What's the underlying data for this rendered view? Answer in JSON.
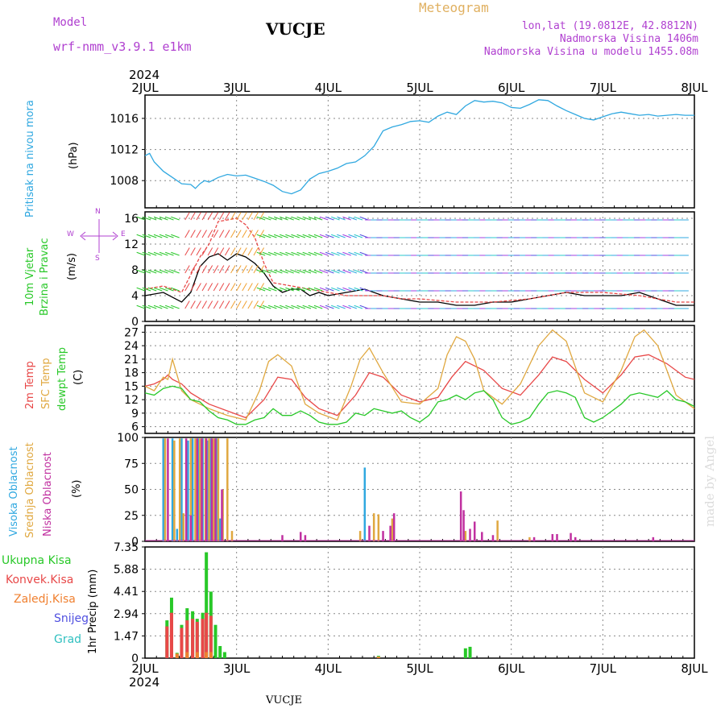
{
  "header": {
    "model_label": "Model",
    "model_name": "wrf-nmm_v3.9.1 e1km",
    "station": "VUCJE",
    "meteogram": "Meteogram",
    "lonlat": "lon,lat (19.0812E, 42.8812N)",
    "elevation": "Nadmorska Visina 1406m",
    "model_elevation": "Nadmorska Visina u modelu 1455.08m",
    "year_top": "2024",
    "year_bottom": "2024",
    "footer_station": "VUCJE",
    "credit": "made by Angel"
  },
  "colors": {
    "pressure": "#30a8e0",
    "temp2m": "#e84848",
    "sfc": "#e0a840",
    "dew": "#28c828",
    "high_cloud": "#30a8e0",
    "mid_cloud": "#e0a840",
    "low_cloud": "#c030a0",
    "total_precip": "#28c828",
    "conv_precip": "#e84848",
    "frozen_precip": "#f08030",
    "snow": "#5050e0",
    "hail": "#30c0c0",
    "wind_label": "#28c828",
    "wind_dir": "#b040d0"
  },
  "labels": {
    "pressure": {
      "name": "Pritisak na nivou mora",
      "unit": "(hPa)"
    },
    "wind": {
      "name1": "10m Vjetar",
      "name2": "Brzina i Pravac",
      "unit": "(m/s)",
      "compass_n": "N",
      "compass_s": "S",
      "compass_w": "W",
      "compass_e": "E"
    },
    "temp": {
      "t2m": "2m Temp",
      "sfc": "SFC Temp",
      "dew": "dewpt Temp",
      "unit": "(C)"
    },
    "cloud": {
      "high": "Visoka Oblacnost",
      "mid": "Srednja Oblacnost",
      "low": "Niska Oblacnost",
      "unit": "(%)"
    },
    "precip": {
      "unit": "1hr Precip (mm)",
      "legend": [
        "Ukupna Kisa",
        "Konvek.Kisa",
        "Zaledj.Kisa",
        "Snijeg",
        "Grad"
      ]
    }
  },
  "chart_data": [
    {
      "type": "line",
      "name": "pressure",
      "title": "",
      "ylabel": "Pritisak na nivou mora (hPa)",
      "x_ticks": [
        "2JUL",
        "3JUL",
        "4JUL",
        "5JUL",
        "6JUL",
        "7JUL",
        "8JUL"
      ],
      "xlim": [
        0,
        6
      ],
      "ylim": [
        1004.5,
        1019
      ],
      "y_ticks": [
        1008,
        1012,
        1016
      ],
      "grid": true,
      "series": [
        {
          "name": "pressure",
          "x": [
            0,
            0.05,
            0.1,
            0.2,
            0.3,
            0.4,
            0.5,
            0.55,
            0.6,
            0.65,
            0.7,
            0.8,
            0.9,
            1.0,
            1.1,
            1.2,
            1.3,
            1.4,
            1.5,
            1.6,
            1.7,
            1.8,
            1.9,
            2.0,
            2.1,
            2.2,
            2.3,
            2.4,
            2.5,
            2.6,
            2.7,
            2.8,
            2.9,
            3.0,
            3.1,
            3.2,
            3.3,
            3.4,
            3.5,
            3.6,
            3.7,
            3.8,
            3.9,
            4.0,
            4.1,
            4.2,
            4.3,
            4.4,
            4.5,
            4.6,
            4.7,
            4.8,
            4.9,
            5.0,
            5.1,
            5.2,
            5.3,
            5.4,
            5.5,
            5.6,
            5.7,
            5.8,
            5.9,
            6.0
          ],
          "values": [
            1011.2,
            1011.5,
            1010.4,
            1009.2,
            1008.4,
            1007.6,
            1007.5,
            1007.0,
            1007.6,
            1008.0,
            1007.8,
            1008.4,
            1008.8,
            1008.6,
            1008.7,
            1008.3,
            1007.9,
            1007.4,
            1006.6,
            1006.3,
            1006.8,
            1008.2,
            1008.9,
            1009.2,
            1009.6,
            1010.2,
            1010.4,
            1011.2,
            1012.4,
            1014.4,
            1014.9,
            1015.2,
            1015.6,
            1015.7,
            1015.5,
            1016.3,
            1016.8,
            1016.5,
            1017.6,
            1018.3,
            1018.1,
            1018.2,
            1018.0,
            1017.4,
            1017.3,
            1017.8,
            1018.4,
            1018.3,
            1017.6,
            1017.0,
            1016.5,
            1016.0,
            1015.8,
            1016.2,
            1016.6,
            1016.8,
            1016.6,
            1016.4,
            1016.5,
            1016.3,
            1016.4,
            1016.5,
            1016.4,
            1016.4
          ]
        }
      ]
    },
    {
      "type": "line",
      "name": "wind",
      "title": "",
      "ylabel": "10m Vjetar Brzina i Pravac (m/s)",
      "x_ticks": [
        "2JUL",
        "3JUL",
        "4JUL",
        "5JUL",
        "6JUL",
        "7JUL",
        "8JUL"
      ],
      "xlim": [
        0,
        6
      ],
      "ylim": [
        0,
        17
      ],
      "y_ticks": [
        0,
        4,
        8,
        12,
        16
      ],
      "grid": true,
      "series": [
        {
          "name": "speed",
          "x": [
            0,
            0.2,
            0.4,
            0.5,
            0.6,
            0.7,
            0.8,
            0.9,
            1.0,
            1.1,
            1.2,
            1.3,
            1.4,
            1.5,
            1.6,
            1.7,
            1.8,
            1.9,
            2.0,
            2.2,
            2.4,
            2.6,
            2.8,
            3.0,
            3.2,
            3.4,
            3.6,
            3.8,
            4.0,
            4.2,
            4.4,
            4.6,
            4.8,
            5.0,
            5.2,
            5.4,
            5.6,
            5.8,
            6.0
          ],
          "values": [
            4.0,
            4.5,
            3.0,
            4.5,
            8.5,
            10.0,
            10.5,
            9.5,
            10.5,
            10.0,
            9.0,
            7.5,
            5.5,
            4.5,
            5.0,
            5.0,
            4.0,
            4.5,
            4.0,
            4.5,
            5.0,
            4.0,
            3.5,
            3.0,
            3.0,
            2.5,
            2.5,
            3.0,
            3.0,
            3.5,
            4.0,
            4.5,
            4.0,
            4.0,
            4.0,
            4.5,
            3.5,
            2.5,
            2.5
          ]
        },
        {
          "name": "gust",
          "x": [
            0,
            0.2,
            0.4,
            0.6,
            0.7,
            0.8,
            1.0,
            1.1,
            1.2,
            1.3,
            1.4,
            1.6,
            1.8,
            2.0,
            2.2,
            2.4,
            2.6,
            2.8,
            3.0,
            3.4,
            3.8,
            4.2,
            4.6,
            5.0,
            5.4,
            5.8,
            6.0
          ],
          "values": [
            5.0,
            5.5,
            4.5,
            10.0,
            12.0,
            15.5,
            16.0,
            15.0,
            13.0,
            9.0,
            6.0,
            5.5,
            5.0,
            4.5,
            4.0,
            4.0,
            4.0,
            3.5,
            3.5,
            3.0,
            3.0,
            3.5,
            4.5,
            4.5,
            4.0,
            3.0,
            3.0
          ]
        }
      ]
    },
    {
      "type": "line",
      "name": "temperature",
      "title": "",
      "ylabel": "(C)",
      "x_ticks": [
        "2JUL",
        "3JUL",
        "4JUL",
        "5JUL",
        "6JUL",
        "7JUL",
        "8JUL"
      ],
      "xlim": [
        0,
        6
      ],
      "ylim": [
        4.5,
        28.5
      ],
      "y_ticks": [
        6,
        9,
        12,
        15,
        18,
        21,
        24,
        27
      ],
      "grid": true,
      "series": [
        {
          "name": "2m Temp",
          "x": [
            0,
            0.1,
            0.2,
            0.25,
            0.3,
            0.4,
            0.5,
            0.7,
            0.9,
            1.1,
            1.3,
            1.45,
            1.6,
            1.75,
            1.9,
            2.1,
            2.3,
            2.45,
            2.6,
            2.8,
            3.0,
            3.2,
            3.35,
            3.5,
            3.7,
            3.9,
            4.1,
            4.3,
            4.45,
            4.6,
            4.8,
            5.0,
            5.2,
            5.35,
            5.5,
            5.7,
            5.9,
            6.0
          ],
          "values": [
            15.0,
            15.5,
            16.5,
            17.5,
            16.5,
            15.5,
            13.5,
            11.0,
            9.5,
            8.0,
            12.0,
            17.0,
            16.5,
            12.5,
            10.0,
            8.5,
            13.0,
            18.0,
            17.0,
            13.0,
            11.5,
            12.5,
            17.0,
            20.5,
            18.5,
            14.5,
            13.0,
            17.5,
            21.5,
            20.5,
            16.5,
            13.5,
            17.5,
            21.5,
            22.0,
            20.0,
            17.0,
            16.5
          ]
        },
        {
          "name": "SFC Temp",
          "x": [
            0,
            0.1,
            0.2,
            0.25,
            0.3,
            0.4,
            0.5,
            0.7,
            0.9,
            1.1,
            1.25,
            1.35,
            1.45,
            1.6,
            1.75,
            1.9,
            2.1,
            2.25,
            2.35,
            2.45,
            2.6,
            2.8,
            3.0,
            3.2,
            3.3,
            3.4,
            3.5,
            3.6,
            3.7,
            3.9,
            4.1,
            4.3,
            4.45,
            4.6,
            4.8,
            5.0,
            5.2,
            5.35,
            5.45,
            5.6,
            5.8,
            6.0
          ],
          "values": [
            15.0,
            14.0,
            17.0,
            16.5,
            21.0,
            14.0,
            12.0,
            10.0,
            8.5,
            7.5,
            14.0,
            20.5,
            22.0,
            19.5,
            11.0,
            9.0,
            7.5,
            15.0,
            21.0,
            23.5,
            18.0,
            11.5,
            11.0,
            14.5,
            22.0,
            26.0,
            25.0,
            21.0,
            14.0,
            11.0,
            15.5,
            24.0,
            27.5,
            25.0,
            13.5,
            11.5,
            18.5,
            26.0,
            27.5,
            24.0,
            13.0,
            10.0
          ]
        },
        {
          "name": "dewpt Temp",
          "x": [
            0,
            0.1,
            0.2,
            0.3,
            0.4,
            0.5,
            0.6,
            0.7,
            0.8,
            0.9,
            1.0,
            1.1,
            1.2,
            1.3,
            1.4,
            1.5,
            1.6,
            1.7,
            1.8,
            1.9,
            2.0,
            2.1,
            2.2,
            2.3,
            2.4,
            2.5,
            2.6,
            2.7,
            2.8,
            2.9,
            3.0,
            3.1,
            3.2,
            3.3,
            3.4,
            3.5,
            3.6,
            3.7,
            3.8,
            3.9,
            4.0,
            4.1,
            4.2,
            4.3,
            4.4,
            4.5,
            4.6,
            4.7,
            4.8,
            4.9,
            5.0,
            5.1,
            5.2,
            5.3,
            5.4,
            5.5,
            5.6,
            5.7,
            5.8,
            5.9,
            6.0
          ],
          "values": [
            13.5,
            13.0,
            14.5,
            15.0,
            14.5,
            12.0,
            11.5,
            9.5,
            8.0,
            7.5,
            6.5,
            6.5,
            7.5,
            8.0,
            10.0,
            8.5,
            8.5,
            9.5,
            8.5,
            7.0,
            6.5,
            6.5,
            7.0,
            9.0,
            8.5,
            10.0,
            9.5,
            9.0,
            9.5,
            8.0,
            7.0,
            8.5,
            11.5,
            12.0,
            13.0,
            12.0,
            13.5,
            14.0,
            12.0,
            8.0,
            6.5,
            7.0,
            8.0,
            11.0,
            13.5,
            14.0,
            13.5,
            12.5,
            8.0,
            7.0,
            8.0,
            9.5,
            11.0,
            13.0,
            13.5,
            13.0,
            12.5,
            14.0,
            12.0,
            11.5,
            10.5
          ]
        }
      ]
    },
    {
      "type": "bar",
      "name": "cloud",
      "title": "",
      "ylabel": "(%)",
      "x_ticks": [
        "2JUL",
        "3JUL",
        "4JUL",
        "5JUL",
        "6JUL",
        "7JUL",
        "8JUL"
      ],
      "xlim": [
        0,
        6
      ],
      "ylim": [
        0,
        100
      ],
      "y_ticks": [
        0,
        25,
        50,
        75,
        100
      ],
      "grid": true,
      "series": [
        {
          "name": "Visoka Oblacnost",
          "x": [
            0.2,
            0.3,
            0.35,
            0.4,
            0.47,
            0.52,
            0.58,
            0.63,
            0.68,
            0.72,
            0.78,
            0.82,
            2.4
          ],
          "values": [
            99,
            99,
            12,
            99,
            97,
            99,
            99,
            99,
            97,
            99,
            99,
            22,
            71
          ]
        },
        {
          "name": "Srednja Oblacnost",
          "x": [
            0.22,
            0.32,
            0.38,
            0.42,
            0.5,
            0.55,
            0.6,
            0.66,
            0.7,
            0.75,
            0.8,
            0.85,
            0.9,
            0.95,
            2.35,
            2.5,
            2.55,
            2.7,
            3.5,
            3.6,
            3.85,
            4.2
          ],
          "values": [
            99,
            97,
            99,
            27,
            99,
            99,
            99,
            99,
            99,
            99,
            99,
            50,
            99,
            10,
            10,
            27,
            26,
            22,
            10,
            5,
            20,
            4
          ]
        },
        {
          "name": "Niska Oblacnost",
          "x": [
            0.25,
            0.45,
            0.5,
            0.57,
            0.62,
            0.67,
            0.73,
            0.77,
            0.84,
            1.5,
            1.7,
            1.75,
            2.45,
            2.6,
            2.68,
            2.72,
            3.45,
            3.48,
            3.55,
            3.6,
            3.68,
            3.8,
            4.25,
            4.45,
            4.5,
            4.65,
            4.7,
            5.55
          ],
          "values": [
            99,
            99,
            25,
            99,
            99,
            99,
            99,
            99,
            50,
            6,
            9,
            6,
            15,
            10,
            15,
            27,
            48,
            30,
            12,
            19,
            9,
            6,
            4,
            7,
            7,
            8,
            4,
            4
          ]
        }
      ]
    },
    {
      "type": "bar",
      "name": "precip",
      "title": "",
      "ylabel": "1hr Precip (mm)",
      "x_ticks": [
        "2JUL",
        "3JUL",
        "4JUL",
        "5JUL",
        "6JUL",
        "7JUL",
        "8JUL"
      ],
      "xlim": [
        0,
        6
      ],
      "ylim": [
        0,
        7.35
      ],
      "y_ticks": [
        0,
        1.47,
        2.94,
        4.41,
        5.88,
        7.35
      ],
      "grid": true,
      "series": [
        {
          "name": "Ukupna Kisa",
          "x": [
            0.24,
            0.29,
            0.35,
            0.4,
            0.46,
            0.52,
            0.57,
            0.63,
            0.67,
            0.72,
            0.77,
            0.82,
            0.87,
            2.55,
            3.5,
            3.55
          ],
          "values": [
            2.5,
            4.0,
            0.35,
            2.2,
            3.3,
            3.1,
            2.6,
            3.0,
            7.0,
            4.4,
            2.2,
            0.8,
            0.4,
            0.15,
            0.65,
            0.75
          ]
        },
        {
          "name": "Konvek.Kisa",
          "x": [
            0.24,
            0.29,
            0.4,
            0.46,
            0.52,
            0.57,
            0.63,
            0.67,
            0.72
          ],
          "values": [
            2.1,
            3.0,
            2.0,
            2.5,
            2.6,
            2.4,
            2.6,
            3.0,
            2.8
          ]
        },
        {
          "name": "Zaledj.Kisa",
          "x": [
            0.35,
            0.46,
            0.57,
            0.67,
            0.72,
            2.55
          ],
          "values": [
            0.3,
            0.4,
            0.4,
            0.4,
            0.4,
            0.1
          ]
        }
      ]
    }
  ]
}
